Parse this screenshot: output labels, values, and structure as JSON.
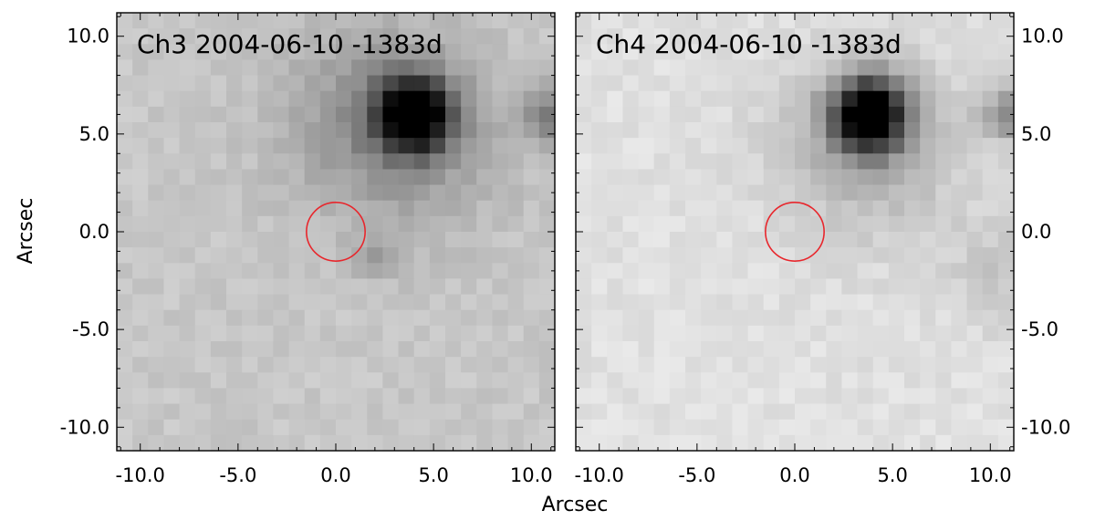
{
  "figure": {
    "xlabel": "Arcsec",
    "ylabel": "Arcsec",
    "axis_range": [
      -11.2,
      11.2
    ],
    "ticks": [
      -10.0,
      -5.0,
      0.0,
      5.0,
      10.0
    ],
    "tick_labels": [
      "-10.0",
      "-5.0",
      "0.0",
      "5.0",
      "10.0"
    ],
    "circle": {
      "center": [
        0.0,
        0.0
      ],
      "radius_arcsec": 1.5,
      "color": "#e8262c"
    },
    "colormap": "gray_r"
  },
  "panels": [
    {
      "title": "Ch3 2004-06-10 -1383d",
      "background_level": 0.78,
      "sources": [
        {
          "x": 4.0,
          "y": 6.0,
          "peak": 0.9,
          "sigma": 1.3
        },
        {
          "x": 3.5,
          "y": 5.0,
          "peak": 0.2,
          "sigma": 3.5
        },
        {
          "x": 1.0,
          "y": 6.5,
          "peak": 0.08,
          "sigma": 3.0
        },
        {
          "x": 10.8,
          "y": 6.0,
          "peak": 0.28,
          "sigma": 1.0
        },
        {
          "x": 2.0,
          "y": -1.3,
          "peak": 0.15,
          "sigma": 0.7
        }
      ]
    },
    {
      "title": "Ch4 2004-06-10 -1383d",
      "background_level": 0.88,
      "sources": [
        {
          "x": 3.8,
          "y": 6.0,
          "peak": 0.95,
          "sigma": 1.3
        },
        {
          "x": 3.8,
          "y": 4.5,
          "peak": 0.22,
          "sigma": 3.2
        },
        {
          "x": 10.9,
          "y": 6.0,
          "peak": 0.3,
          "sigma": 1.0
        },
        {
          "x": 10.5,
          "y": -2.0,
          "peak": 0.1,
          "sigma": 2.0
        }
      ]
    }
  ]
}
